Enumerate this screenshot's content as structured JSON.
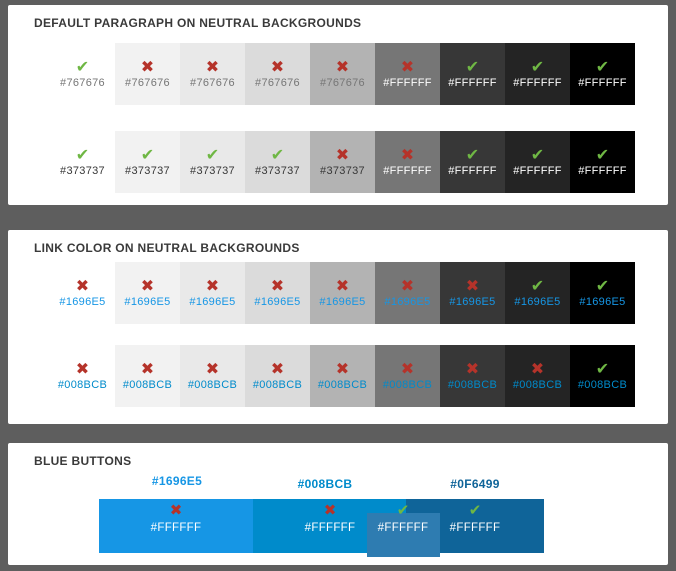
{
  "page": {
    "frame_color": "#5E5E5E",
    "panel_color": "#FFFFFF",
    "heading_color": "#3A3A3A"
  },
  "icons": {
    "pass_glyph": "✔",
    "pass_color": "#6FB744",
    "fail_glyph": "✖",
    "fail_color": "#B5332A"
  },
  "neutral_backgrounds": [
    "#FFFFFF",
    "#F2F2F2",
    "#E9E9E9",
    "#DBDBDB",
    "#B3B3B3",
    "#767676",
    "#373737",
    "#242424",
    "#000000"
  ],
  "sections": [
    {
      "title": "DEFAULT PARAGRAPH ON NEUTRAL BACKGROUNDS",
      "rows": [
        {
          "cells": [
            {
              "bg": "#FFFFFF",
              "label": "#767676",
              "text_color": "#767676",
              "pass": true
            },
            {
              "bg": "#F2F2F2",
              "label": "#767676",
              "text_color": "#767676",
              "pass": false
            },
            {
              "bg": "#E9E9E9",
              "label": "#767676",
              "text_color": "#767676",
              "pass": false
            },
            {
              "bg": "#DBDBDB",
              "label": "#767676",
              "text_color": "#767676",
              "pass": false
            },
            {
              "bg": "#B3B3B3",
              "label": "#767676",
              "text_color": "#767676",
              "pass": false
            },
            {
              "bg": "#767676",
              "label": "#FFFFFF",
              "text_color": "#FFFFFF",
              "pass": false
            },
            {
              "bg": "#373737",
              "label": "#FFFFFF",
              "text_color": "#FFFFFF",
              "pass": true
            },
            {
              "bg": "#242424",
              "label": "#FFFFFF",
              "text_color": "#FFFFFF",
              "pass": true
            },
            {
              "bg": "#000000",
              "label": "#FFFFFF",
              "text_color": "#FFFFFF",
              "pass": true
            }
          ]
        },
        {
          "cells": [
            {
              "bg": "#FFFFFF",
              "label": "#373737",
              "text_color": "#373737",
              "pass": true
            },
            {
              "bg": "#F2F2F2",
              "label": "#373737",
              "text_color": "#373737",
              "pass": true
            },
            {
              "bg": "#E9E9E9",
              "label": "#373737",
              "text_color": "#373737",
              "pass": true
            },
            {
              "bg": "#DBDBDB",
              "label": "#373737",
              "text_color": "#373737",
              "pass": true
            },
            {
              "bg": "#B3B3B3",
              "label": "#373737",
              "text_color": "#373737",
              "pass": false
            },
            {
              "bg": "#767676",
              "label": "#FFFFFF",
              "text_color": "#FFFFFF",
              "pass": false
            },
            {
              "bg": "#373737",
              "label": "#FFFFFF",
              "text_color": "#FFFFFF",
              "pass": true
            },
            {
              "bg": "#242424",
              "label": "#FFFFFF",
              "text_color": "#FFFFFF",
              "pass": true
            },
            {
              "bg": "#000000",
              "label": "#FFFFFF",
              "text_color": "#FFFFFF",
              "pass": true
            }
          ]
        }
      ]
    },
    {
      "title": "LINK COLOR ON NEUTRAL BACKGROUNDS",
      "rows": [
        {
          "cells": [
            {
              "bg": "#FFFFFF",
              "label": "#1696E5",
              "text_color": "#1696E5",
              "pass": false
            },
            {
              "bg": "#F2F2F2",
              "label": "#1696E5",
              "text_color": "#1696E5",
              "pass": false
            },
            {
              "bg": "#E9E9E9",
              "label": "#1696E5",
              "text_color": "#1696E5",
              "pass": false
            },
            {
              "bg": "#DBDBDB",
              "label": "#1696E5",
              "text_color": "#1696E5",
              "pass": false
            },
            {
              "bg": "#B3B3B3",
              "label": "#1696E5",
              "text_color": "#1696E5",
              "pass": false
            },
            {
              "bg": "#767676",
              "label": "#1696E5",
              "text_color": "#1696E5",
              "pass": false
            },
            {
              "bg": "#373737",
              "label": "#1696E5",
              "text_color": "#1696E5",
              "pass": false
            },
            {
              "bg": "#242424",
              "label": "#1696E5",
              "text_color": "#1696E5",
              "pass": true
            },
            {
              "bg": "#000000",
              "label": "#1696E5",
              "text_color": "#1696E5",
              "pass": true
            }
          ]
        },
        {
          "cells": [
            {
              "bg": "#FFFFFF",
              "label": "#008BCB",
              "text_color": "#008BCB",
              "pass": false
            },
            {
              "bg": "#F2F2F2",
              "label": "#008BCB",
              "text_color": "#008BCB",
              "pass": false
            },
            {
              "bg": "#E9E9E9",
              "label": "#008BCB",
              "text_color": "#008BCB",
              "pass": false
            },
            {
              "bg": "#DBDBDB",
              "label": "#008BCB",
              "text_color": "#008BCB",
              "pass": false
            },
            {
              "bg": "#B3B3B3",
              "label": "#008BCB",
              "text_color": "#008BCB",
              "pass": false
            },
            {
              "bg": "#767676",
              "label": "#008BCB",
              "text_color": "#008BCB",
              "pass": false
            },
            {
              "bg": "#373737",
              "label": "#008BCB",
              "text_color": "#008BCB",
              "pass": false
            },
            {
              "bg": "#242424",
              "label": "#008BCB",
              "text_color": "#008BCB",
              "pass": false
            },
            {
              "bg": "#000000",
              "label": "#008BCB",
              "text_color": "#008BCB",
              "pass": true
            }
          ]
        }
      ]
    },
    {
      "title": "BLUE BUTTONS",
      "labels": [
        {
          "text": "#1696E5",
          "color": "#1696E5"
        },
        {
          "text": "#008BCB",
          "color": "#008BCB"
        },
        {
          "text": "#0F6499",
          "color": "#0F6499"
        }
      ],
      "segments": [
        {
          "bg": "#1696E5",
          "label": "#FFFFFF",
          "text_color": "#FFFFFF",
          "pass": false
        },
        {
          "bg": "#008BCB",
          "label": "#FFFFFF",
          "text_color": "#FFFFFF",
          "pass": false
        },
        {
          "bg": "#0F6499",
          "label": "#FFFFFF",
          "text_color": "#FFFFFF",
          "pass": true
        }
      ],
      "overlay_button": {
        "bg": "#2E7CB1",
        "label": "#FFFFFF",
        "text_color": "#FFFFFF",
        "pass": true
      }
    }
  ]
}
